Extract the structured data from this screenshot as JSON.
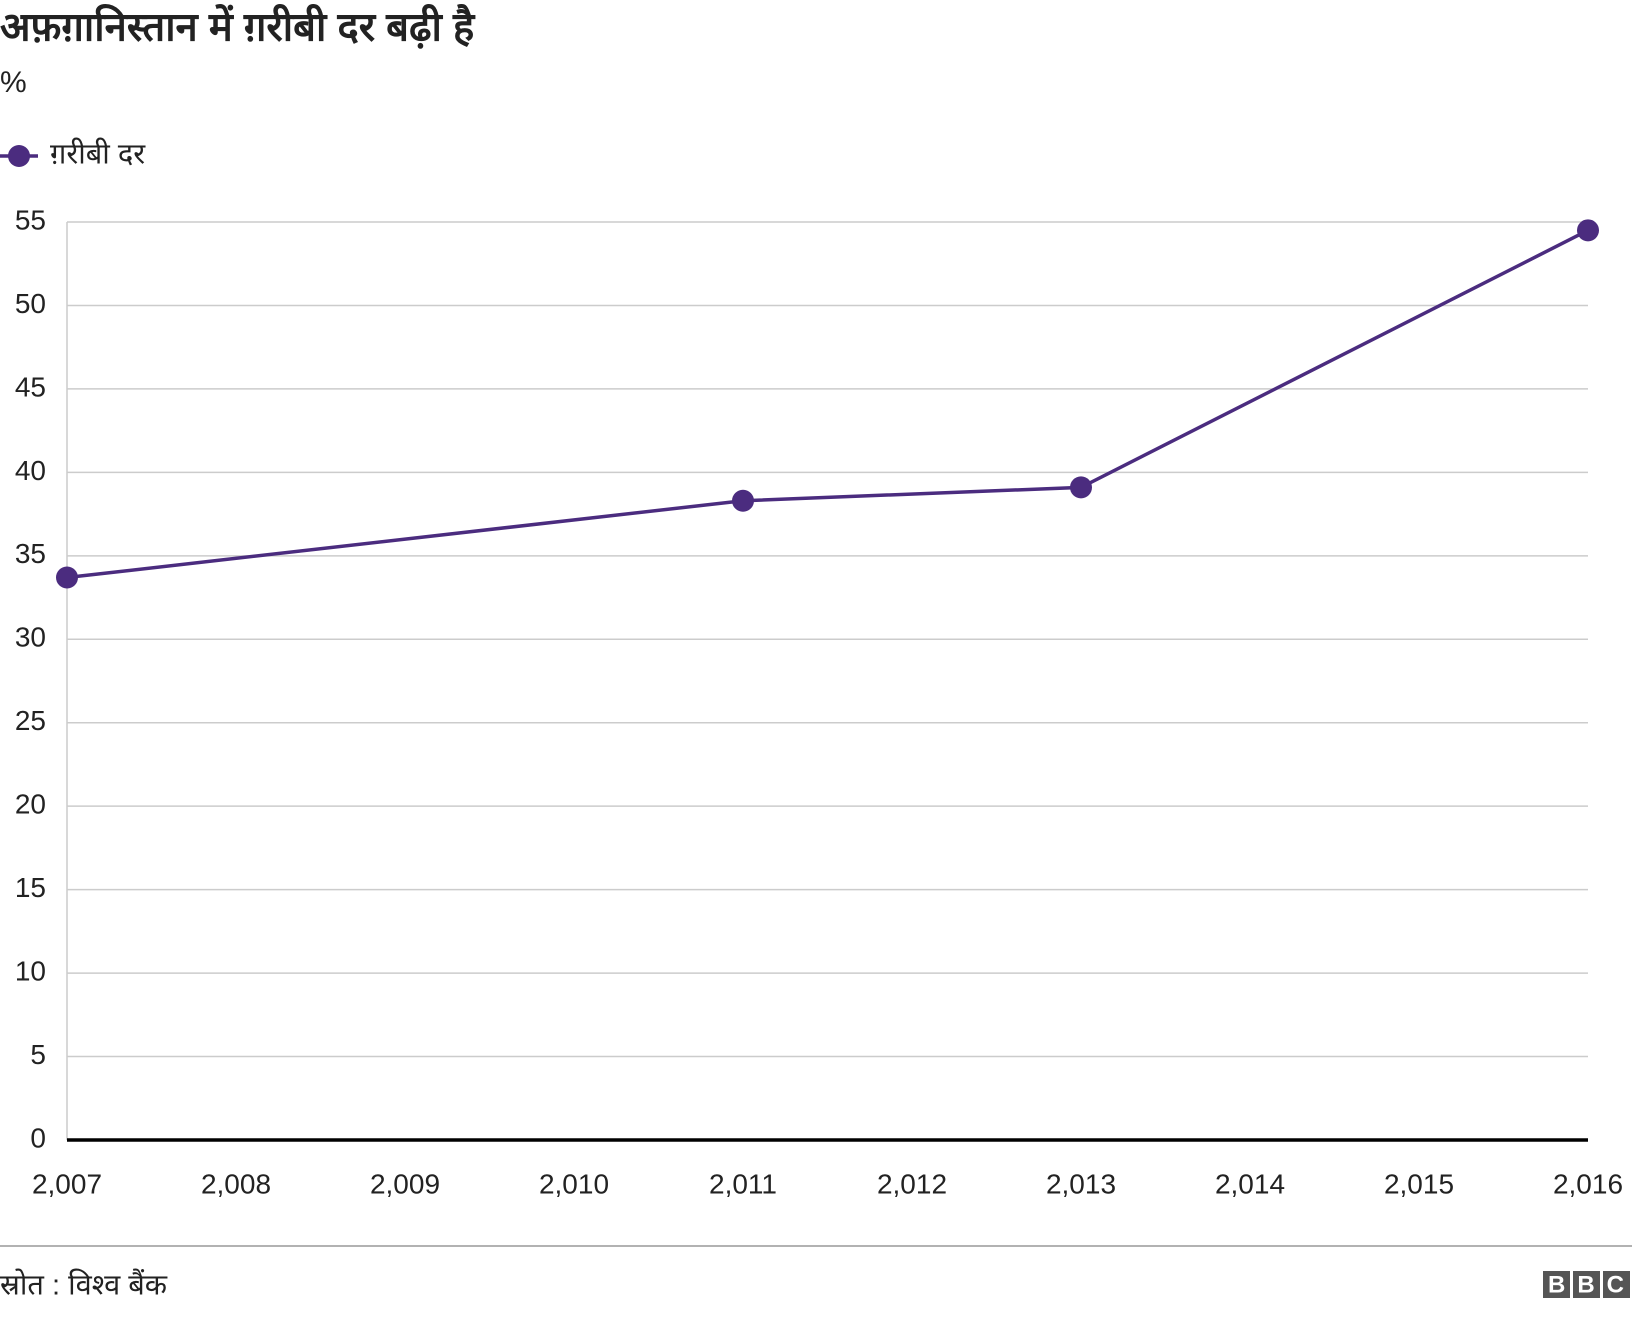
{
  "chart_data": {
    "type": "line",
    "title": "अफ़ग़ानिस्तान में ग़रीबी दर बढ़ी है",
    "subtitle": "%",
    "x": [
      2007,
      2011,
      2013,
      2016
    ],
    "series": [
      {
        "name": "ग़रीबी दर",
        "color": "#4b2c7f",
        "values": [
          33.7,
          38.3,
          39.1,
          54.5
        ]
      }
    ],
    "xlim": [
      2007,
      2016
    ],
    "xticks": [
      {
        "value": 2007,
        "label": "2,007"
      },
      {
        "value": 2008,
        "label": "2,008"
      },
      {
        "value": 2009,
        "label": "2,009"
      },
      {
        "value": 2010,
        "label": "2,010"
      },
      {
        "value": 2011,
        "label": "2,011"
      },
      {
        "value": 2012,
        "label": "2,012"
      },
      {
        "value": 2013,
        "label": "2,013"
      },
      {
        "value": 2014,
        "label": "2,014"
      },
      {
        "value": 2015,
        "label": "2,015"
      },
      {
        "value": 2016,
        "label": "2,016"
      }
    ],
    "ylim": [
      0,
      55
    ],
    "yticks": [
      0,
      5,
      10,
      15,
      20,
      25,
      30,
      35,
      40,
      45,
      50,
      55
    ],
    "grid": true,
    "legend": "top-left",
    "source": "स्रोत : विश्व बैंक",
    "logo": "BBC"
  }
}
